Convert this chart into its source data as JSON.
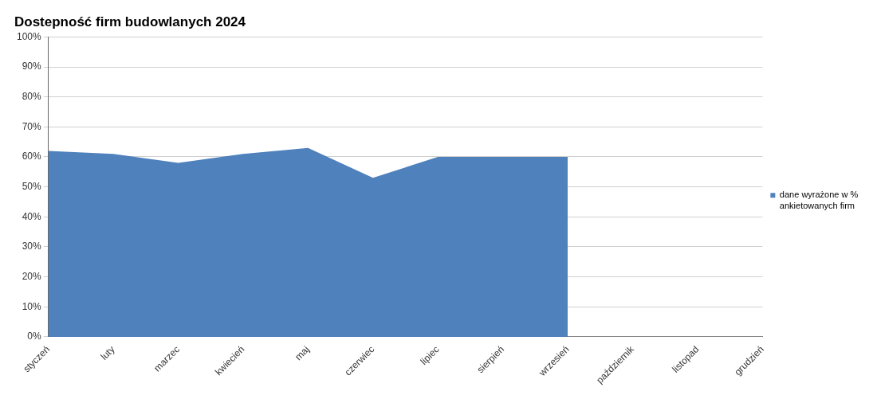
{
  "chart_data": {
    "type": "area",
    "title": "Dostepność firm budowlanych 2024",
    "categories": [
      "styczeń",
      "luty",
      "marzec",
      "kwiecień",
      "maj",
      "czerwiec",
      "lipiec",
      "sierpień",
      "wrzesień",
      "październik",
      "listopad",
      "grudzień"
    ],
    "series": [
      {
        "name": "dane wyrażone w % ankietowanych firm",
        "color": "#4f81bd",
        "values": [
          62,
          61,
          58,
          61,
          63,
          53,
          60,
          60,
          60,
          null,
          null,
          null
        ]
      }
    ],
    "ylim": [
      0,
      100
    ],
    "yticks": [
      {
        "value": 0,
        "label": "0%"
      },
      {
        "value": 10,
        "label": "10%"
      },
      {
        "value": 20,
        "label": "20%"
      },
      {
        "value": 30,
        "label": "30%"
      },
      {
        "value": 40,
        "label": "40%"
      },
      {
        "value": 50,
        "label": "50%"
      },
      {
        "value": 60,
        "label": "60%"
      },
      {
        "value": 70,
        "label": "70%"
      },
      {
        "value": 80,
        "label": "80%"
      },
      {
        "value": 90,
        "label": "90%"
      },
      {
        "value": 100,
        "label": "100%"
      }
    ],
    "grid": "y",
    "legend": "right"
  }
}
